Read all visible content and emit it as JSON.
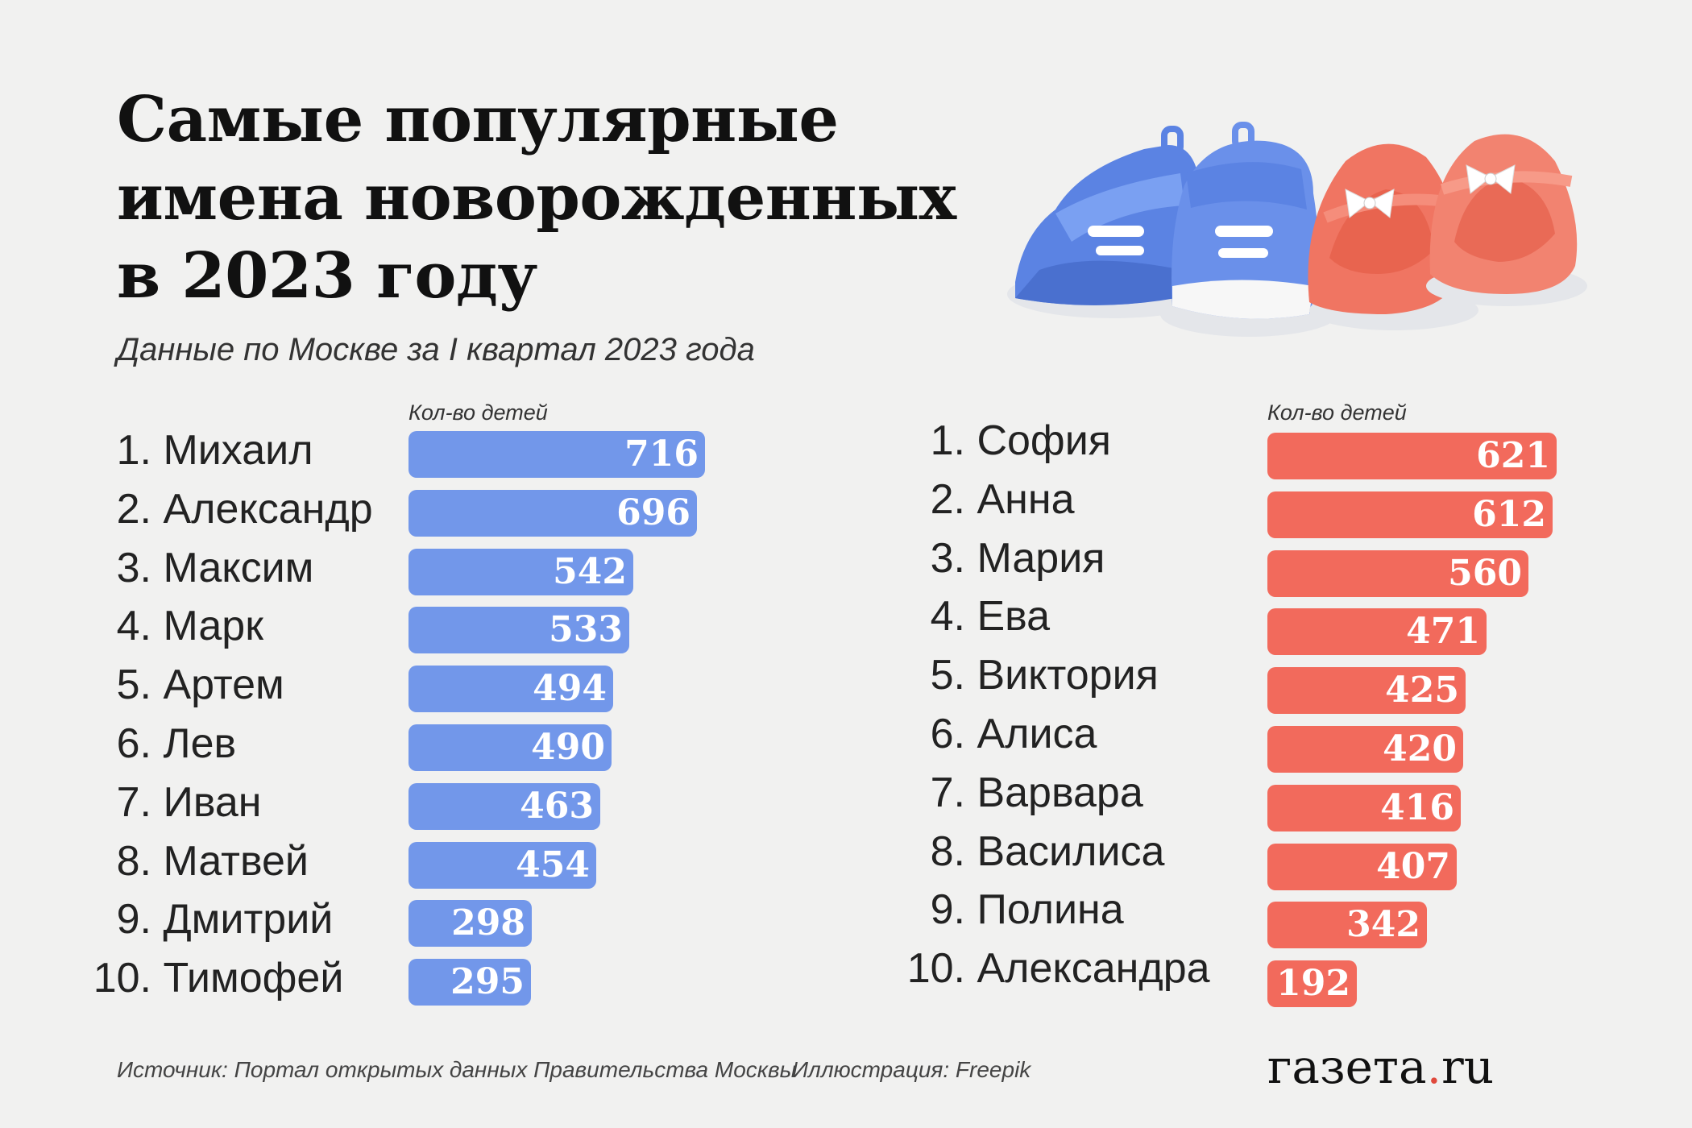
{
  "title_lines": [
    "Самые популярные",
    "имена новорожденных",
    "в 2023 году"
  ],
  "subtitle": "Данные по Москве за I квартал 2023 года",
  "colors": {
    "boys": "#7297ea",
    "girls": "#f26a5c",
    "logo_dot": "#e0493c"
  },
  "chart_data": [
    {
      "type": "bar",
      "orientation": "horizontal",
      "value_label": "Кол-во детей",
      "categories": [
        "Михаил",
        "Александр",
        "Максим",
        "Марк",
        "Артем",
        "Лев",
        "Иван",
        "Матвей",
        "Дмитрий",
        "Тимофей"
      ],
      "ranks": [
        "1.",
        "2.",
        "3.",
        "4.",
        "5.",
        "6.",
        "7.",
        "8.",
        "9.",
        "10."
      ],
      "values": [
        716,
        696,
        542,
        533,
        494,
        490,
        463,
        454,
        298,
        295
      ],
      "color": "#7297ea"
    },
    {
      "type": "bar",
      "orientation": "horizontal",
      "value_label": "Кол-во детей",
      "categories": [
        "София",
        "Анна",
        "Мария",
        "Ева",
        "Виктория",
        "Алиса",
        "Варвара",
        "Василиса",
        "Полина",
        "Александра"
      ],
      "ranks": [
        "1.",
        "2.",
        "3.",
        "4.",
        "5.",
        "6.",
        "7.",
        "8.",
        "9.",
        "10."
      ],
      "values": [
        621,
        612,
        560,
        471,
        425,
        420,
        416,
        407,
        342,
        192
      ],
      "color": "#f26a5c"
    }
  ],
  "footer": {
    "source": "Источник: Портал открытых данных Правительства Москвы",
    "illustration": "Иллюстрация:  Freepik"
  },
  "logo": {
    "text": "газета",
    "dot": ".",
    "tld": "ru"
  },
  "illustration_icon": "baby-shoes-illustration"
}
